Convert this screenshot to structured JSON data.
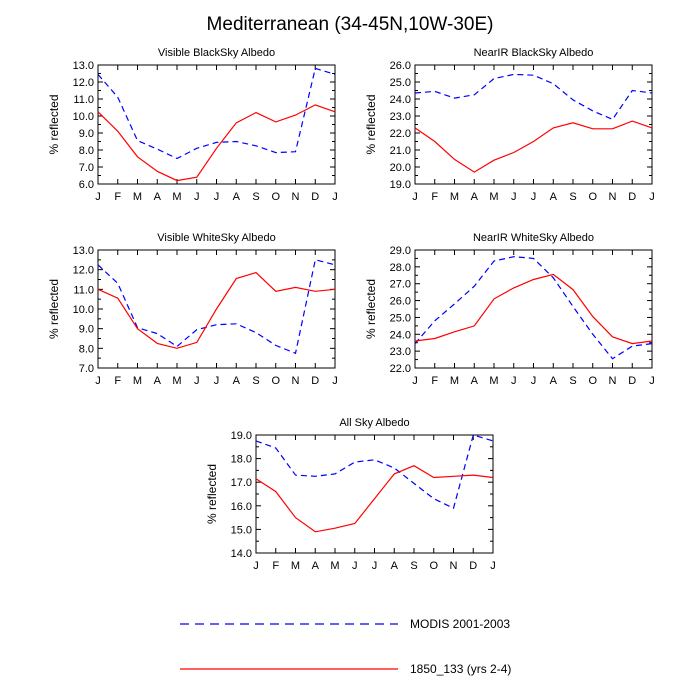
{
  "title": "Mediterranean (34-45N,10W-30E)",
  "legend": [
    {
      "name": "MODIS 2001-2003",
      "color": "#0000ff",
      "style": "dashed"
    },
    {
      "name": "1850_133 (yrs 2-4)",
      "color": "#ff0000",
      "style": "solid"
    }
  ],
  "chart_data": [
    {
      "type": "line",
      "title": "Visible BlackSky Albedo",
      "ylabel": "% reflected",
      "categories": [
        "J",
        "F",
        "M",
        "A",
        "M",
        "J",
        "J",
        "A",
        "S",
        "O",
        "N",
        "D",
        "J"
      ],
      "ylim": [
        6.0,
        13.0
      ],
      "yticks": [
        "6.0",
        "7.0",
        "8.0",
        "9.0",
        "10.0",
        "11.0",
        "12.0",
        "13.0"
      ],
      "series": [
        {
          "name": "MODIS 2001-2003",
          "values": [
            12.45,
            11.1,
            8.55,
            8.05,
            7.5,
            8.1,
            8.45,
            8.5,
            8.25,
            7.85,
            7.9,
            12.8,
            12.45
          ]
        },
        {
          "name": "1850_133 (yrs 2-4)",
          "values": [
            10.25,
            9.1,
            7.6,
            6.75,
            6.2,
            6.4,
            8.1,
            9.6,
            10.2,
            9.65,
            10.05,
            10.65,
            10.25
          ]
        }
      ]
    },
    {
      "type": "line",
      "title": "NearIR BlackSky Albedo",
      "ylabel": "% reflected",
      "categories": [
        "J",
        "F",
        "M",
        "A",
        "M",
        "J",
        "J",
        "A",
        "S",
        "O",
        "N",
        "D",
        "J"
      ],
      "ylim": [
        19.0,
        26.0
      ],
      "yticks": [
        "19.0",
        "20.0",
        "21.0",
        "22.0",
        "23.0",
        "24.0",
        "25.0",
        "26.0"
      ],
      "series": [
        {
          "name": "MODIS 2001-2003",
          "values": [
            24.35,
            24.45,
            24.05,
            24.25,
            25.2,
            25.45,
            25.4,
            24.9,
            23.95,
            23.3,
            22.8,
            24.5,
            24.35
          ]
        },
        {
          "name": "1850_133 (yrs 2-4)",
          "values": [
            22.3,
            21.5,
            20.45,
            19.7,
            20.4,
            20.85,
            21.5,
            22.3,
            22.6,
            22.25,
            22.25,
            22.7,
            22.3
          ]
        }
      ]
    },
    {
      "type": "line",
      "title": "Visible WhiteSky Albedo",
      "ylabel": "% reflected",
      "categories": [
        "J",
        "F",
        "M",
        "A",
        "M",
        "J",
        "J",
        "A",
        "S",
        "O",
        "N",
        "D",
        "J"
      ],
      "ylim": [
        7.0,
        13.0
      ],
      "yticks": [
        "7.0",
        "8.0",
        "9.0",
        "10.0",
        "11.0",
        "12.0",
        "13.0"
      ],
      "series": [
        {
          "name": "MODIS 2001-2003",
          "values": [
            12.25,
            11.3,
            9.05,
            8.75,
            8.1,
            8.95,
            9.2,
            9.25,
            8.8,
            8.15,
            7.75,
            12.5,
            12.25
          ]
        },
        {
          "name": "1850_133 (yrs 2-4)",
          "values": [
            11.0,
            10.55,
            9.0,
            8.25,
            8.0,
            8.3,
            10.0,
            11.55,
            11.85,
            10.9,
            11.1,
            10.9,
            11.0
          ]
        }
      ]
    },
    {
      "type": "line",
      "title": "NearIR WhiteSky Albedo",
      "ylabel": "% reflected",
      "categories": [
        "J",
        "F",
        "M",
        "A",
        "M",
        "J",
        "J",
        "A",
        "S",
        "O",
        "N",
        "D",
        "J"
      ],
      "ylim": [
        22.0,
        29.0
      ],
      "yticks": [
        "22.0",
        "23.0",
        "24.0",
        "25.0",
        "26.0",
        "27.0",
        "28.0",
        "29.0"
      ],
      "series": [
        {
          "name": "MODIS 2001-2003",
          "values": [
            23.45,
            24.8,
            25.8,
            26.85,
            28.35,
            28.6,
            28.5,
            27.35,
            25.65,
            24.0,
            22.55,
            23.3,
            23.45
          ]
        },
        {
          "name": "1850_133 (yrs 2-4)",
          "values": [
            23.6,
            23.75,
            24.15,
            24.5,
            26.1,
            26.75,
            27.25,
            27.55,
            26.65,
            25.05,
            23.85,
            23.45,
            23.6
          ]
        }
      ]
    },
    {
      "type": "line",
      "title": "All Sky Albedo",
      "ylabel": "% reflected",
      "categories": [
        "J",
        "F",
        "M",
        "A",
        "M",
        "J",
        "J",
        "A",
        "S",
        "O",
        "N",
        "D",
        "J"
      ],
      "ylim": [
        14.0,
        19.0
      ],
      "yticks": [
        "14.0",
        "15.0",
        "16.0",
        "17.0",
        "18.0",
        "19.0"
      ],
      "series": [
        {
          "name": "MODIS 2001-2003",
          "values": [
            18.75,
            18.45,
            17.3,
            17.25,
            17.35,
            17.85,
            17.95,
            17.6,
            16.95,
            16.3,
            15.9,
            19.0,
            18.75
          ]
        },
        {
          "name": "1850_133 (yrs 2-4)",
          "values": [
            17.15,
            16.6,
            15.5,
            14.9,
            15.05,
            15.25,
            16.3,
            17.35,
            17.7,
            17.2,
            17.25,
            17.3,
            17.2
          ]
        }
      ]
    }
  ]
}
